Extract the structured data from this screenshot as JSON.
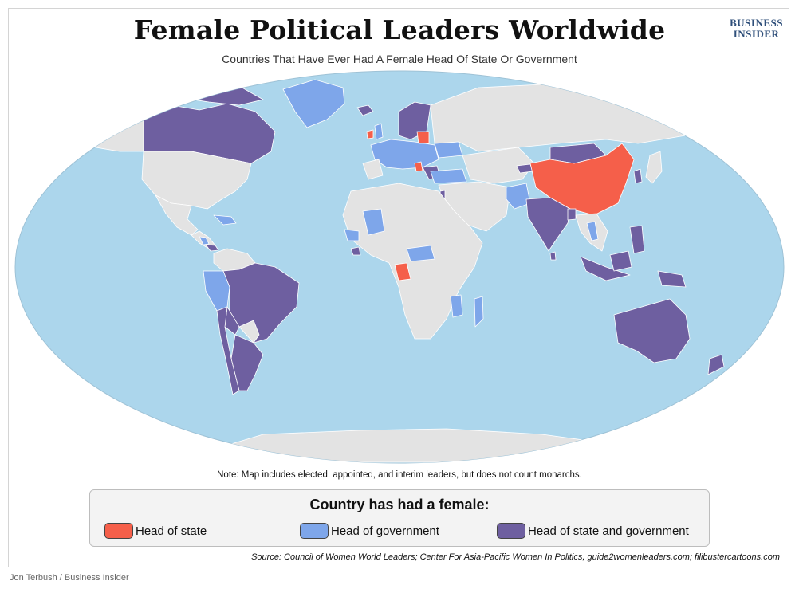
{
  "header": {
    "title": "Female Political Leaders Worldwide",
    "subtitle": "Countries That Have Ever Had A Female Head Of State Or Government",
    "brand_line1": "BUSINESS",
    "brand_line2": "INSIDER"
  },
  "note": "Note: Map includes elected, appointed, and interim leaders, but does not count monarchs.",
  "legend": {
    "title": "Country has had a female:",
    "items": [
      {
        "label": "Head of state",
        "color": "#f55f4a"
      },
      {
        "label": "Head of government",
        "color": "#7ea6ea"
      },
      {
        "label": "Head of state and government",
        "color": "#6e5fa0"
      }
    ]
  },
  "source": "Source: Council of Women World Leaders; Center For Asia-Pacific Women In Politics, guide2womenleaders.com; filibustercartoons.com",
  "credit": "Jon Terbush / Business Insider",
  "colors": {
    "ocean": "#acd6ec",
    "land_default": "#e3e3e3",
    "head_of_state": "#f55f4a",
    "head_of_government": "#7ea6ea",
    "head_of_state_and_government": "#6e5fa0"
  }
}
